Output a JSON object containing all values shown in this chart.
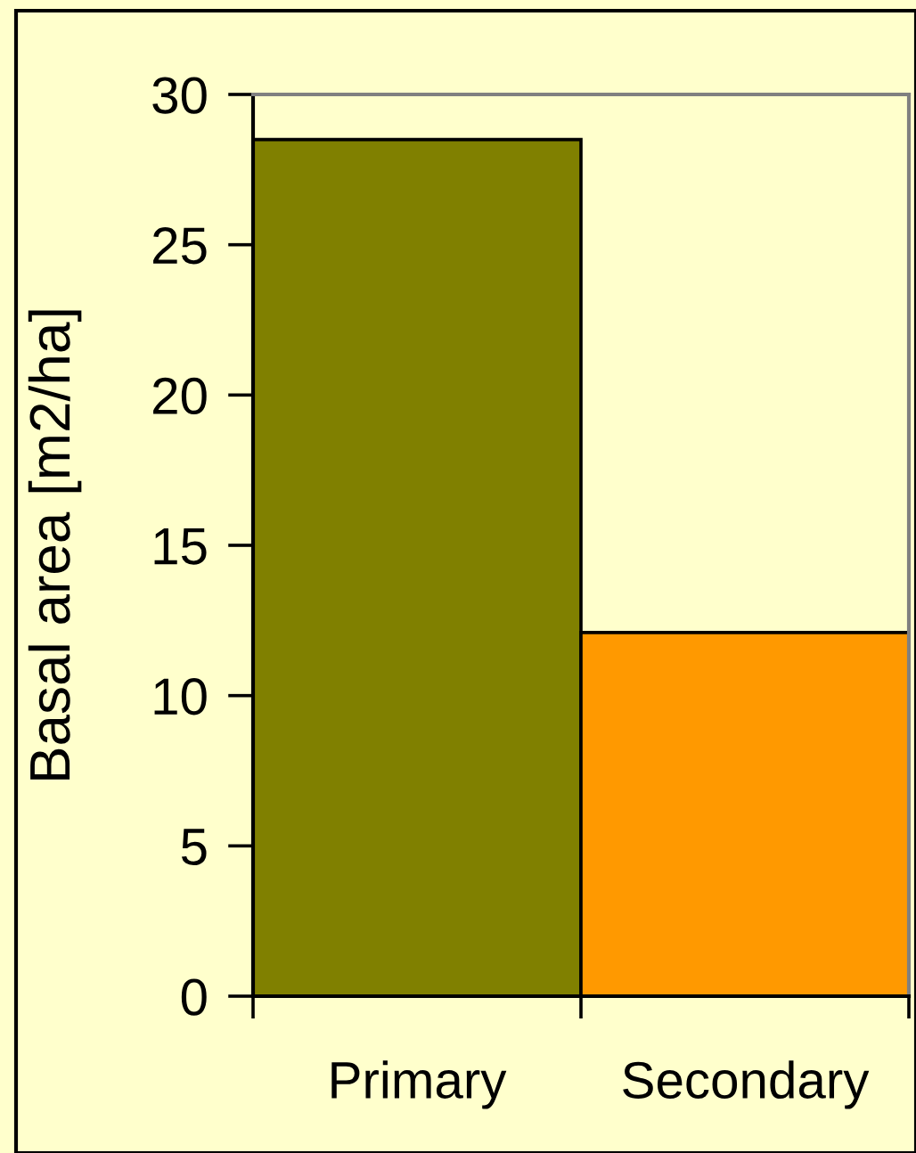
{
  "chart_data": {
    "type": "bar",
    "ylabel": "Basal area [m2/ha]",
    "categories": [
      "Primary",
      "Secondary"
    ],
    "values": [
      28.5,
      12.1
    ],
    "colors": [
      "#808000",
      "#ff9900"
    ],
    "ylim": [
      0,
      30
    ],
    "yticks": [
      0,
      5,
      10,
      15,
      20,
      25,
      30
    ],
    "grid": false
  }
}
